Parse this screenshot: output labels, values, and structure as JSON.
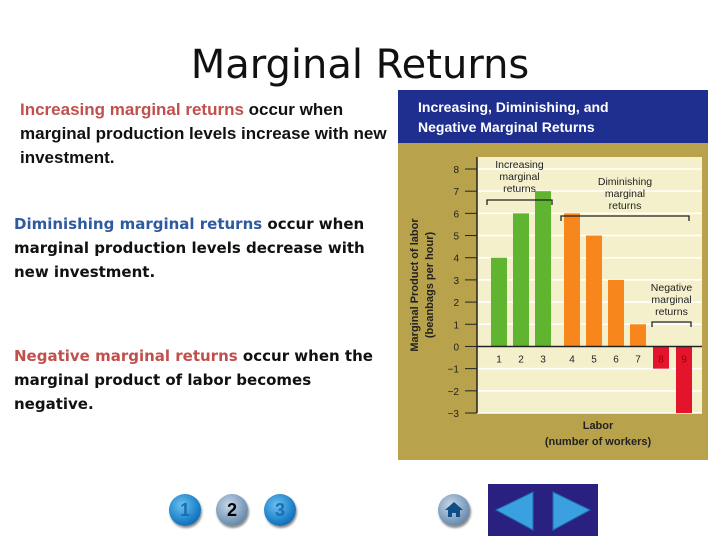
{
  "title": "Marginal Returns",
  "paragraphs": {
    "increasing": {
      "term": "Increasing marginal returns",
      "rest": " occur when marginal production levels increase with new investment."
    },
    "diminishing": {
      "term": "Diminishing marginal returns",
      "rest": " occur when marginal production levels decrease with new investment."
    },
    "negative": {
      "term": "Negative marginal returns",
      "rest": " occur when the marginal product of labor becomes negative."
    }
  },
  "colors": {
    "increasing": "#5fb52f",
    "diminishing": "#f7861c",
    "negative": "#e3142c",
    "header": "#1f2f8f",
    "panel": "#b9a24c",
    "plot": "#f5f0cc"
  },
  "chart_data": {
    "type": "bar",
    "title": "Increasing, Diminishing, and Negative Marginal Returns",
    "xlabel": "Labor",
    "xlabel2": "(number of workers)",
    "ylabel": "Marginal Product of labor",
    "ylabel2": "(beanbags per hour)",
    "categories": [
      "1",
      "2",
      "3",
      "4",
      "5",
      "6",
      "7",
      "8",
      "9"
    ],
    "values": [
      4,
      6,
      7,
      6,
      5,
      3,
      1,
      -1,
      -3
    ],
    "groups": [
      "increasing",
      "increasing",
      "increasing",
      "diminishing",
      "diminishing",
      "diminishing",
      "diminishing",
      "negative",
      "negative"
    ],
    "ylim": [
      -3,
      8
    ],
    "yticks": [
      "8",
      "7",
      "6",
      "5",
      "4",
      "3",
      "2",
      "1",
      "0",
      "−1",
      "−2",
      "−3"
    ],
    "grid": true,
    "annotations": [
      {
        "text": [
          "Increasing",
          "marginal",
          "returns"
        ],
        "span": [
          1,
          3
        ]
      },
      {
        "text": [
          "Diminishing",
          "marginal",
          "returns"
        ],
        "span": [
          4,
          9
        ]
      },
      {
        "text": [
          "Negative",
          "marginal",
          "returns"
        ],
        "span": [
          8,
          9
        ]
      }
    ]
  },
  "nav": {
    "pages": [
      "1",
      "2",
      "3"
    ],
    "current": "2",
    "home": "home-icon",
    "prev": "previous-icon",
    "next": "next-icon"
  }
}
